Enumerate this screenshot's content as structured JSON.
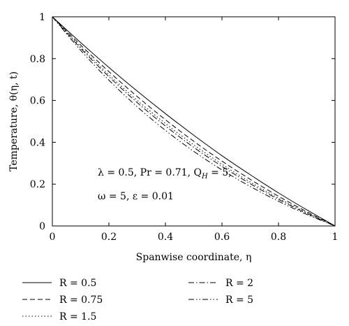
{
  "chart_data": {
    "type": "line",
    "xlabel": "Spanwise coordinate, η",
    "ylabel": "Temperature, θ(η, t)",
    "xlim": [
      0,
      1
    ],
    "ylim": [
      0,
      1
    ],
    "xticks": [
      "0",
      "0.2",
      "0.4",
      "0.6",
      "0.8",
      "1"
    ],
    "yticks": [
      "0",
      "0.2",
      "0.4",
      "0.6",
      "0.8",
      "1"
    ],
    "grid": false,
    "legend_position": "bottom",
    "annotation": {
      "line1": "λ = 0.5, Pr = 0.71, Q",
      "line1_sub": "H",
      "line1_end": " = 5,",
      "line2": "ω = 5, ε = 0.01"
    },
    "series": [
      {
        "name": "R = 0.5",
        "dash": "solid",
        "x": [
          0,
          0.1,
          0.2,
          0.3,
          0.4,
          0.5,
          0.6,
          0.7,
          0.8,
          0.9,
          1.0
        ],
        "y": [
          1.0,
          0.877,
          0.758,
          0.645,
          0.537,
          0.434,
          0.336,
          0.245,
          0.158,
          0.077,
          0.0
        ]
      },
      {
        "name": "R = 0.75",
        "dash": "dashed",
        "x": [
          0,
          0.1,
          0.2,
          0.3,
          0.4,
          0.5,
          0.6,
          0.7,
          0.8,
          0.9,
          1.0
        ],
        "y": [
          1.0,
          0.865,
          0.738,
          0.619,
          0.508,
          0.405,
          0.31,
          0.223,
          0.142,
          0.068,
          0.0
        ]
      },
      {
        "name": "R = 1.5",
        "dash": "dotted",
        "x": [
          0,
          0.1,
          0.2,
          0.3,
          0.4,
          0.5,
          0.6,
          0.7,
          0.8,
          0.9,
          1.0
        ],
        "y": [
          1.0,
          0.856,
          0.723,
          0.601,
          0.49,
          0.388,
          0.295,
          0.21,
          0.133,
          0.063,
          0.0
        ]
      },
      {
        "name": "R = 2",
        "dash": "dashdot",
        "x": [
          0,
          0.1,
          0.2,
          0.3,
          0.4,
          0.5,
          0.6,
          0.7,
          0.8,
          0.9,
          1.0
        ],
        "y": [
          1.0,
          0.85,
          0.714,
          0.59,
          0.478,
          0.376,
          0.285,
          0.202,
          0.127,
          0.06,
          0.0
        ]
      },
      {
        "name": "R = 5",
        "dash": "dashdotdot",
        "x": [
          0,
          0.1,
          0.2,
          0.3,
          0.4,
          0.5,
          0.6,
          0.7,
          0.8,
          0.9,
          1.0
        ],
        "y": [
          1.0,
          0.84,
          0.697,
          0.57,
          0.457,
          0.357,
          0.268,
          0.189,
          0.118,
          0.055,
          0.0
        ]
      }
    ]
  }
}
